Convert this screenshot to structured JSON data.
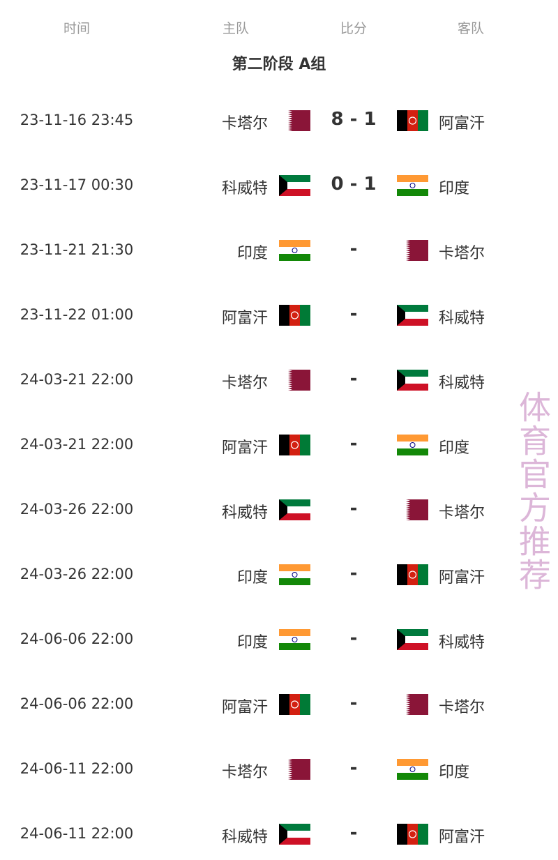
{
  "headers": {
    "time": "时间",
    "home": "主队",
    "score": "比分",
    "away": "客队"
  },
  "group_title": "第二阶段 A组",
  "matches": [
    {
      "time": "23-11-16 23:45",
      "home": "卡塔尔",
      "home_flag": "qatar",
      "score": "8 - 1",
      "away": "阿富汗",
      "away_flag": "afghanistan"
    },
    {
      "time": "23-11-17 00:30",
      "home": "科威特",
      "home_flag": "kuwait",
      "score": "0 - 1",
      "away": "印度",
      "away_flag": "india"
    },
    {
      "time": "23-11-21 21:30",
      "home": "印度",
      "home_flag": "india",
      "score": "-",
      "away": "卡塔尔",
      "away_flag": "qatar"
    },
    {
      "time": "23-11-22 01:00",
      "home": "阿富汗",
      "home_flag": "afghanistan",
      "score": "-",
      "away": "科威特",
      "away_flag": "kuwait"
    },
    {
      "time": "24-03-21 22:00",
      "home": "卡塔尔",
      "home_flag": "qatar",
      "score": "-",
      "away": "科威特",
      "away_flag": "kuwait"
    },
    {
      "time": "24-03-21 22:00",
      "home": "阿富汗",
      "home_flag": "afghanistan",
      "score": "-",
      "away": "印度",
      "away_flag": "india"
    },
    {
      "time": "24-03-26 22:00",
      "home": "科威特",
      "home_flag": "kuwait",
      "score": "-",
      "away": "卡塔尔",
      "away_flag": "qatar"
    },
    {
      "time": "24-03-26 22:00",
      "home": "印度",
      "home_flag": "india",
      "score": "-",
      "away": "阿富汗",
      "away_flag": "afghanistan"
    },
    {
      "time": "24-06-06 22:00",
      "home": "印度",
      "home_flag": "india",
      "score": "-",
      "away": "科威特",
      "away_flag": "kuwait"
    },
    {
      "time": "24-06-06 22:00",
      "home": "阿富汗",
      "home_flag": "afghanistan",
      "score": "-",
      "away": "卡塔尔",
      "away_flag": "qatar"
    },
    {
      "time": "24-06-11 22:00",
      "home": "卡塔尔",
      "home_flag": "qatar",
      "score": "-",
      "away": "印度",
      "away_flag": "india"
    },
    {
      "time": "24-06-11 22:00",
      "home": "科威特",
      "home_flag": "kuwait",
      "score": "-",
      "away": "阿富汗",
      "away_flag": "afghanistan"
    }
  ],
  "watermark": "体育官方推荐"
}
